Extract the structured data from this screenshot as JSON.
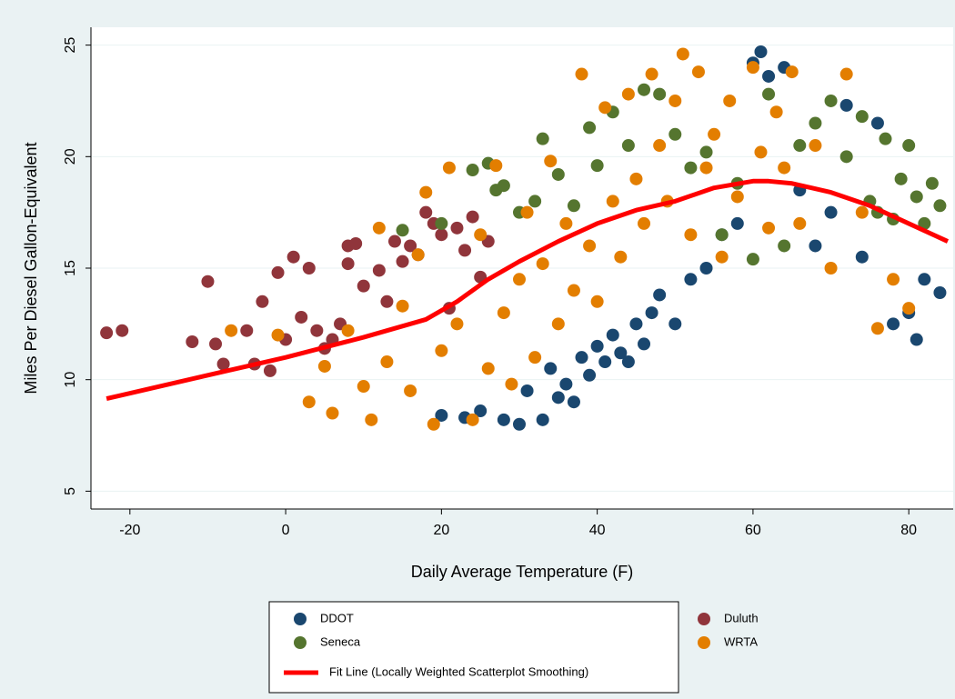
{
  "chart_data": {
    "type": "scatter",
    "x_label": "Daily Average Temperature (F)",
    "y_label": "Miles Per Diesel Gallon-Equivalent",
    "xlim": [
      -25,
      85.7
    ],
    "ylim": [
      4.2,
      25.8
    ],
    "xticks": [
      -20,
      0,
      20,
      40,
      60,
      80
    ],
    "yticks": [
      5,
      10,
      15,
      20,
      25
    ],
    "grid": true,
    "series": [
      {
        "name": "DDOT",
        "color": "#1a476f",
        "x": [
          20,
          23,
          25,
          28,
          30,
          31,
          33,
          34,
          35,
          36,
          37,
          38,
          39,
          40,
          41,
          42,
          43,
          44,
          45,
          46,
          47,
          48,
          50,
          52,
          54,
          56,
          58,
          60,
          61,
          62,
          64,
          66,
          68,
          70,
          72,
          74,
          76,
          78,
          80,
          81,
          82,
          84
        ],
        "y": [
          8.4,
          8.3,
          8.6,
          8.2,
          8.0,
          9.5,
          8.2,
          10.5,
          9.2,
          9.8,
          9.0,
          11.0,
          10.2,
          11.5,
          10.8,
          12.0,
          11.2,
          10.8,
          12.5,
          11.6,
          13.0,
          13.8,
          12.5,
          14.5,
          15.0,
          16.5,
          17.0,
          24.2,
          24.7,
          23.6,
          24.0,
          18.5,
          16.0,
          17.5,
          22.3,
          15.5,
          21.5,
          12.5,
          13.0,
          11.8,
          14.5,
          13.9
        ]
      },
      {
        "name": "Duluth",
        "color": "#90353b",
        "x": [
          -23,
          -21,
          -12,
          -10,
          -9,
          -8,
          -5,
          -4,
          -3,
          -2,
          -1,
          0,
          1,
          2,
          3,
          4,
          5,
          6,
          7,
          8,
          8,
          9,
          10,
          12,
          13,
          14,
          15,
          16,
          17,
          18,
          19,
          20,
          21,
          22,
          23,
          24,
          25,
          26
        ],
        "y": [
          12.1,
          12.2,
          11.7,
          14.4,
          11.6,
          10.7,
          12.2,
          10.7,
          13.5,
          10.4,
          14.8,
          11.8,
          15.5,
          12.8,
          15.0,
          12.2,
          11.4,
          11.8,
          12.5,
          16.0,
          15.2,
          16.1,
          14.2,
          14.9,
          13.5,
          16.2,
          15.3,
          16.0,
          15.6,
          17.5,
          17.0,
          16.5,
          13.2,
          16.8,
          15.8,
          17.3,
          14.6,
          16.2
        ]
      },
      {
        "name": "Seneca",
        "color": "#55752f",
        "x": [
          15,
          20,
          24,
          26,
          27,
          28,
          30,
          32,
          33,
          35,
          37,
          39,
          40,
          42,
          44,
          46,
          48,
          50,
          52,
          54,
          56,
          58,
          60,
          62,
          64,
          66,
          68,
          70,
          72,
          74,
          75,
          76,
          77,
          78,
          79,
          80,
          81,
          82,
          83,
          84
        ],
        "y": [
          16.7,
          17.0,
          19.4,
          19.7,
          18.5,
          18.7,
          17.5,
          18.0,
          20.8,
          19.2,
          17.8,
          21.3,
          19.6,
          22.0,
          20.5,
          23.0,
          22.8,
          21.0,
          19.5,
          20.2,
          16.5,
          18.8,
          15.4,
          22.8,
          16.0,
          20.5,
          21.5,
          22.5,
          20.0,
          21.8,
          18.0,
          17.5,
          20.8,
          17.2,
          19.0,
          20.5,
          18.2,
          17.0,
          18.8,
          17.8
        ]
      },
      {
        "name": "WRTA",
        "color": "#e37e00",
        "x": [
          -7,
          -1,
          3,
          5,
          6,
          8,
          10,
          11,
          12,
          13,
          15,
          16,
          17,
          18,
          19,
          20,
          21,
          22,
          24,
          25,
          26,
          27,
          28,
          29,
          30,
          31,
          32,
          33,
          34,
          35,
          36,
          37,
          38,
          39,
          40,
          41,
          42,
          43,
          44,
          45,
          46,
          47,
          48,
          49,
          50,
          51,
          52,
          53,
          54,
          55,
          56,
          57,
          58,
          60,
          61,
          62,
          63,
          64,
          65,
          66,
          68,
          70,
          72,
          74,
          76,
          78,
          80
        ],
        "y": [
          12.2,
          12.0,
          9.0,
          10.6,
          8.5,
          12.2,
          9.7,
          8.2,
          16.8,
          10.8,
          13.3,
          9.5,
          15.6,
          18.4,
          8.0,
          11.3,
          19.5,
          12.5,
          8.2,
          16.5,
          10.5,
          19.6,
          13.0,
          9.8,
          14.5,
          17.5,
          11.0,
          15.2,
          19.8,
          12.5,
          17.0,
          14.0,
          23.7,
          16.0,
          13.5,
          22.2,
          18.0,
          15.5,
          22.8,
          19.0,
          17.0,
          23.7,
          20.5,
          18.0,
          22.5,
          24.6,
          16.5,
          23.8,
          19.5,
          21.0,
          15.5,
          22.5,
          18.2,
          24.0,
          20.2,
          16.8,
          22.0,
          19.5,
          23.8,
          17.0,
          20.5,
          15.0,
          23.7,
          17.5,
          12.3,
          14.5,
          13.2
        ]
      }
    ],
    "fit_line": {
      "name": "Fit Line (Locally Weighted Scatterplot Smoothing)",
      "color": "#ff0000",
      "x": [
        -23,
        -10,
        0,
        10,
        18,
        22,
        26,
        30,
        35,
        40,
        45,
        50,
        55,
        60,
        62,
        65,
        70,
        75,
        80,
        85
      ],
      "y": [
        9.15,
        10.2,
        11.0,
        11.9,
        12.7,
        13.5,
        14.5,
        15.3,
        16.2,
        17.0,
        17.6,
        18.0,
        18.6,
        18.9,
        18.9,
        18.8,
        18.4,
        17.8,
        17.0,
        16.2
      ]
    }
  }
}
